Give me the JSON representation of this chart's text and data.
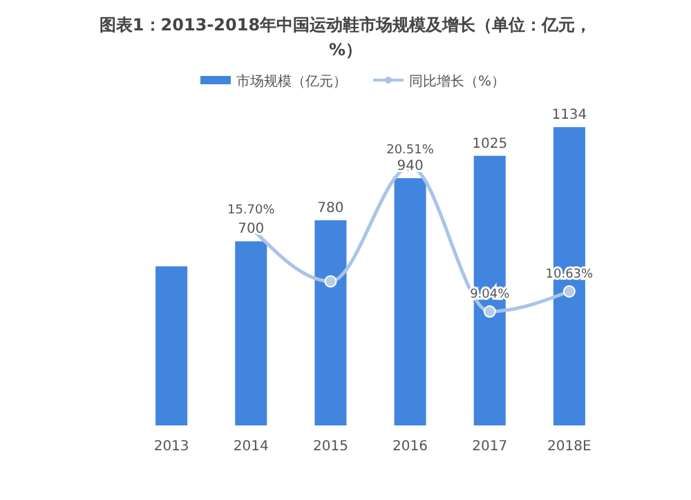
{
  "chart_data": {
    "type": "bar",
    "title": "图表1：2013-2018年中国运动鞋市场规模及增长（单位：亿元，%）",
    "categories": [
      "2013",
      "2014",
      "2015",
      "2016",
      "2017",
      "2018E"
    ],
    "series": [
      {
        "name": "市场规模（亿元）",
        "color": "#4285de",
        "values": [
          605,
          700,
          780,
          940,
          1025,
          1134
        ],
        "value_labels": [
          null,
          "700",
          "780",
          "940",
          "1025",
          "1134"
        ]
      },
      {
        "name": "同比增长（%）",
        "type": "line",
        "axis": "y2",
        "color": "#a9c4e8",
        "values": [
          null,
          15.7,
          11.43,
          20.51,
          9.04,
          10.63
        ],
        "value_labels": [
          null,
          "15.70%",
          null,
          "20.51%",
          "9.04%",
          "10.63%"
        ]
      }
    ],
    "ylim": [
      0,
      1150
    ],
    "y2lim": [
      0,
      24
    ],
    "tick_labels": "x",
    "legend": "top",
    "marker": "circle",
    "grid": false
  }
}
